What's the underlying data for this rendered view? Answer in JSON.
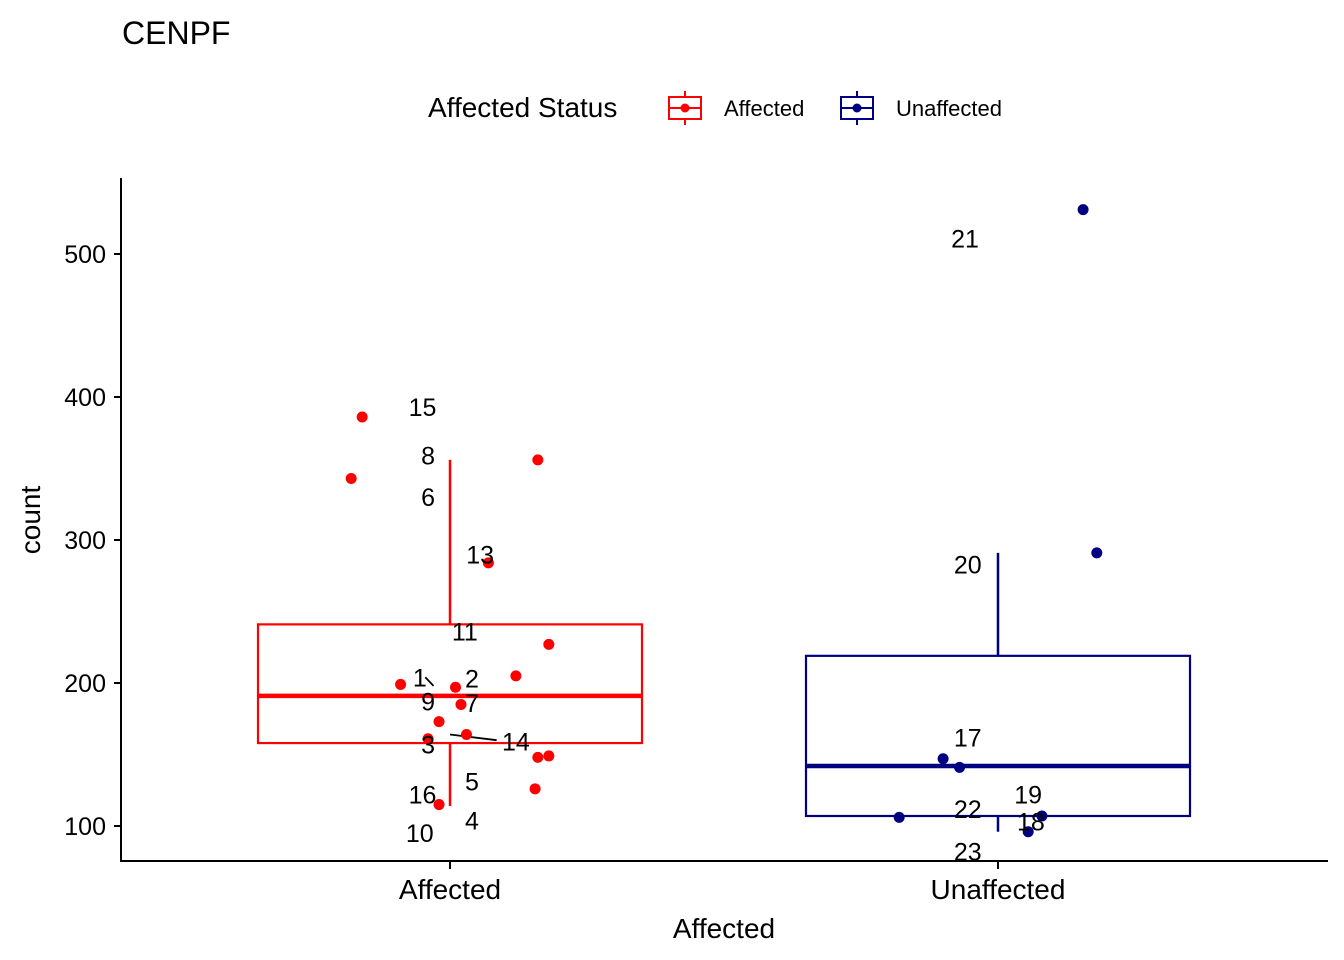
{
  "chart_data": {
    "type": "boxplot",
    "title": "CENPF",
    "xlabel": "Affected",
    "ylabel": "count",
    "ylim": [
      75,
      552
    ],
    "yticks": [
      100,
      200,
      300,
      400,
      500
    ],
    "grid": false,
    "legend": {
      "title": "Affected Status",
      "placement": "top",
      "entries": [
        {
          "label": "Affected",
          "color": "#ff0000"
        },
        {
          "label": "Unaffected",
          "color": "#000080"
        }
      ]
    },
    "categories": [
      "Affected",
      "Unaffected"
    ],
    "boxes": [
      {
        "category": "Affected",
        "color": "#ff0000",
        "lower_whisker": 114,
        "q1": 158,
        "median": 191,
        "q3": 241,
        "upper_whisker": 356
      },
      {
        "category": "Unaffected",
        "color": "#000080",
        "lower_whisker": 96,
        "q1": 107,
        "median": 142,
        "q3": 219,
        "upper_whisker": 291
      }
    ],
    "points": [
      {
        "category": "Affected",
        "jitter": -0.18,
        "y": 343
      },
      {
        "category": "Affected",
        "jitter": -0.16,
        "y": 386
      },
      {
        "category": "Affected",
        "jitter": 0.16,
        "y": 356
      },
      {
        "category": "Affected",
        "jitter": 0.07,
        "y": 284
      },
      {
        "category": "Affected",
        "jitter": 0.18,
        "y": 227
      },
      {
        "category": "Affected",
        "jitter": 0.12,
        "y": 205
      },
      {
        "category": "Affected",
        "jitter": -0.09,
        "y": 199
      },
      {
        "category": "Affected",
        "jitter": 0.01,
        "y": 197
      },
      {
        "category": "Affected",
        "jitter": 0.02,
        "y": 185
      },
      {
        "category": "Affected",
        "jitter": -0.02,
        "y": 173
      },
      {
        "category": "Affected",
        "jitter": 0.03,
        "y": 164
      },
      {
        "category": "Affected",
        "jitter": -0.04,
        "y": 161
      },
      {
        "category": "Affected",
        "jitter": 0.16,
        "y": 148
      },
      {
        "category": "Affected",
        "jitter": 0.18,
        "y": 149
      },
      {
        "category": "Affected",
        "jitter": 0.155,
        "y": 126
      },
      {
        "category": "Affected",
        "jitter": -0.02,
        "y": 115
      },
      {
        "category": "Unaffected",
        "jitter": 0.155,
        "y": 531
      },
      {
        "category": "Unaffected",
        "jitter": 0.18,
        "y": 291
      },
      {
        "category": "Unaffected",
        "jitter": -0.1,
        "y": 147
      },
      {
        "category": "Unaffected",
        "jitter": -0.07,
        "y": 141
      },
      {
        "category": "Unaffected",
        "jitter": -0.18,
        "y": 106
      },
      {
        "category": "Unaffected",
        "jitter": 0.08,
        "y": 107
      },
      {
        "category": "Unaffected",
        "jitter": 0.055,
        "y": 96
      }
    ],
    "annotations": [
      {
        "text": "15",
        "category": "Affected",
        "dx": -0.05,
        "y": 393
      },
      {
        "text": "8",
        "category": "Affected",
        "dx": -0.04,
        "y": 359
      },
      {
        "text": "6",
        "category": "Affected",
        "dx": -0.04,
        "y": 330
      },
      {
        "text": "13",
        "category": "Affected",
        "dx": 0.055,
        "y": 290
      },
      {
        "text": "11",
        "category": "Affected",
        "dx": 0.027,
        "y": 236
      },
      {
        "text": "1",
        "category": "Affected",
        "dx": -0.055,
        "y": 204
      },
      {
        "text": "2",
        "category": "Affected",
        "dx": 0.04,
        "y": 203
      },
      {
        "text": "9",
        "category": "Affected",
        "dx": -0.04,
        "y": 187
      },
      {
        "text": "7",
        "category": "Affected",
        "dx": 0.04,
        "y": 186
      },
      {
        "text": "3",
        "category": "Affected",
        "dx": -0.04,
        "y": 157
      },
      {
        "text": "14",
        "category": "Affected",
        "dx": 0.12,
        "y": 159
      },
      {
        "text": "5",
        "category": "Affected",
        "dx": 0.04,
        "y": 131
      },
      {
        "text": "16",
        "category": "Affected",
        "dx": -0.05,
        "y": 122
      },
      {
        "text": "4",
        "category": "Affected",
        "dx": 0.04,
        "y": 104
      },
      {
        "text": "10",
        "category": "Affected",
        "dx": -0.055,
        "y": 95
      },
      {
        "text": "21",
        "category": "Unaffected",
        "dx": -0.06,
        "y": 511
      },
      {
        "text": "20",
        "category": "Unaffected",
        "dx": -0.055,
        "y": 283
      },
      {
        "text": "17",
        "category": "Unaffected",
        "dx": -0.055,
        "y": 162
      },
      {
        "text": "19",
        "category": "Unaffected",
        "dx": 0.055,
        "y": 122
      },
      {
        "text": "22",
        "category": "Unaffected",
        "dx": -0.055,
        "y": 112
      },
      {
        "text": "18",
        "category": "Unaffected",
        "dx": 0.06,
        "y": 103
      },
      {
        "text": "23",
        "category": "Unaffected",
        "dx": -0.055,
        "y": 82
      }
    ],
    "connectors": [
      {
        "category": "Affected",
        "x1": -0.045,
        "y1": 204,
        "x2": -0.03,
        "y2": 198
      },
      {
        "category": "Affected",
        "x1": 0.0,
        "y1": 164,
        "x2": 0.085,
        "y2": 160
      }
    ]
  }
}
